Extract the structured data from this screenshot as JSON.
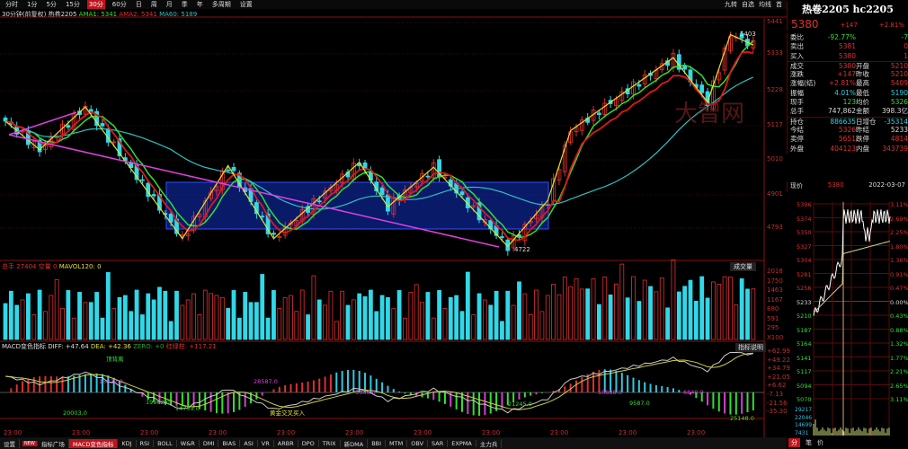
{
  "toolbar": {
    "items": [
      "分时",
      "1分",
      "5分",
      "15分",
      "30分",
      "60分",
      "日",
      "周",
      "月",
      "季",
      "年",
      "多周期",
      "设置"
    ],
    "active": "30分",
    "right": [
      "九转",
      "自选",
      "均线",
      "首"
    ]
  },
  "info": {
    "label": "30分钟(前复权) 热卷2205",
    "ma1": "AMA1: 5341",
    "ma2": "AMA2: 5341",
    "ma3": "MA60: 5189"
  },
  "price_axis": [
    "5441",
    "5333",
    "5228",
    "5117",
    "5010",
    "4901",
    "4793"
  ],
  "annotations": {
    "high": "5403",
    "low": "4722",
    "watermark": "大智网"
  },
  "volume": {
    "header_label": "总手",
    "header_value": "27404",
    "kc_label": "空量",
    "kc_value": "0",
    "mavol": "MAVOL120: 0",
    "selector": "成交量",
    "axis": [
      "2018",
      "1750",
      "1463",
      "1167",
      "880",
      "591",
      "295",
      "X100"
    ]
  },
  "macd": {
    "label": "MACD变色指标",
    "diff": "DIFF: +47.64",
    "dea": "DEA: +42.36",
    "zero": "ZERO: +0",
    "extra": "红绿柱: +117.21",
    "button": "指标说明",
    "axis": [
      "+62.99",
      "+49.22",
      "+34.79",
      "+21.05",
      "+6.62",
      "-7.13",
      "-21.56",
      "-35.30"
    ],
    "labels": [
      {
        "t": "顶背离",
        "c": "#30e030"
      },
      {
        "t": "20003.0",
        "c": "#30e030"
      },
      {
        "t": "15822.0",
        "c": "#e040e0"
      },
      {
        "t": "14759.0",
        "c": "#30e030"
      },
      {
        "t": "黄金交叉买入",
        "c": "#e0e030"
      },
      {
        "t": "28587.0",
        "c": "#e040e0"
      },
      {
        "t": "19962.0",
        "c": "#30e030"
      },
      {
        "t": "5966.0",
        "c": "#e040e0"
      },
      {
        "t": "21245.0",
        "c": "#30e030"
      },
      {
        "t": "10888.0",
        "c": "#e040e0"
      },
      {
        "t": "9587.0",
        "c": "#30e030"
      },
      {
        "t": "6840.0",
        "c": "#e040e0"
      },
      {
        "t": "25148.0",
        "c": "#30e030"
      }
    ]
  },
  "time_axis": [
    "23:00",
    "23:00",
    "23:00",
    "23:00",
    "23:00",
    "23:00",
    "23:00",
    "23:00",
    "23:00",
    "23:00",
    "23:00"
  ],
  "tabs": [
    "设置",
    "NEW",
    "指标广场",
    "MACD变色指标",
    "KDJ",
    "RSI",
    "BOLL",
    "W&R",
    "DMI",
    "BIAS",
    "ASI",
    "VR",
    "ARBR",
    "DPO",
    "TRIX",
    "新DMA",
    "BBI",
    "MTM",
    "OBV",
    "SAR",
    "EXPMA",
    "主力兵"
  ],
  "active_tab": "MACD变色指标",
  "quote": {
    "title": "热卷2205 hc2205",
    "price": "5380",
    "change": "+147",
    "pct": "+2.81%",
    "rows": [
      [
        "委比",
        "-92.77%",
        "",
        "-7"
      ],
      [
        "卖出",
        "5381",
        "",
        "0"
      ],
      [
        "买入",
        "5380",
        "",
        "1"
      ],
      [
        "成交",
        "5380",
        "开盘",
        "5210"
      ],
      [
        "涨跌",
        "+147",
        "昨收",
        "5210"
      ],
      [
        "涨幅(结)",
        "+2.81%",
        "最高",
        "5409"
      ],
      [
        "振幅",
        "4.01%",
        "最低",
        "5190"
      ],
      [
        "现手",
        "123",
        "均价",
        "5326"
      ],
      [
        "总手",
        "747,862",
        "金额",
        "398.3亿"
      ],
      [
        "持仓",
        "886635",
        "日增仓",
        "-35314"
      ],
      [
        "今结",
        "5326",
        "昨结",
        "5233"
      ],
      [
        "卖停",
        "5651",
        "跌停",
        "4814"
      ],
      [
        "外盘",
        "404123",
        "内盘",
        "343739"
      ]
    ],
    "colors": [
      "#30e030",
      "#e03030",
      "#e03030",
      "#e03030",
      "#e03030",
      "#e03030",
      "#30d0e0",
      "#30e030",
      "#ddd",
      "#30d0e0",
      "#e03030",
      "#e03030",
      "#e03030"
    ]
  },
  "intraday": {
    "label": "现价",
    "price": "5380",
    "date": "2022-03-07",
    "left_axis": [
      "5396",
      "5374",
      "5350",
      "5327",
      "5304",
      "5281",
      "5256",
      "5233",
      "5210",
      "5187",
      "5164",
      "5141",
      "5117",
      "5094",
      "5070"
    ],
    "right_axis": [
      "3.11%",
      "2.69%",
      "2.25%",
      "1.80%",
      "1.36%",
      "0.91%",
      "0.47%",
      "0.00%",
      "0.43%",
      "0.88%",
      "1.32%",
      "1.77%",
      "2.21%",
      "2.65%",
      "3.11%"
    ],
    "vol_axis": [
      "29217",
      "22046",
      "14699",
      "7431"
    ],
    "tabs": [
      "分",
      "笔",
      "价"
    ]
  },
  "chart_data": {
    "type": "candlestick",
    "ylim": [
      4722,
      5441
    ],
    "pivots": [
      [
        0,
        5130
      ],
      [
        6,
        5040
      ],
      [
        14,
        5175
      ],
      [
        31,
        4760
      ],
      [
        39,
        4990
      ],
      [
        47,
        4760
      ],
      [
        62,
        5000
      ],
      [
        67,
        4860
      ],
      [
        75,
        4985
      ],
      [
        88,
        4735
      ],
      [
        95,
        4880
      ],
      [
        99,
        5100
      ],
      [
        117,
        5330
      ],
      [
        123,
        5190
      ],
      [
        127,
        5403
      ],
      [
        131,
        5370
      ]
    ],
    "colors": {
      "up": "#e03030",
      "down": "#30d8e8",
      "ma_fast": "#e0e030",
      "ma_mid": "#30e030",
      "ma_slow": "#30c0c0",
      "trend": "#e040e0",
      "box": "#1030c0"
    }
  }
}
